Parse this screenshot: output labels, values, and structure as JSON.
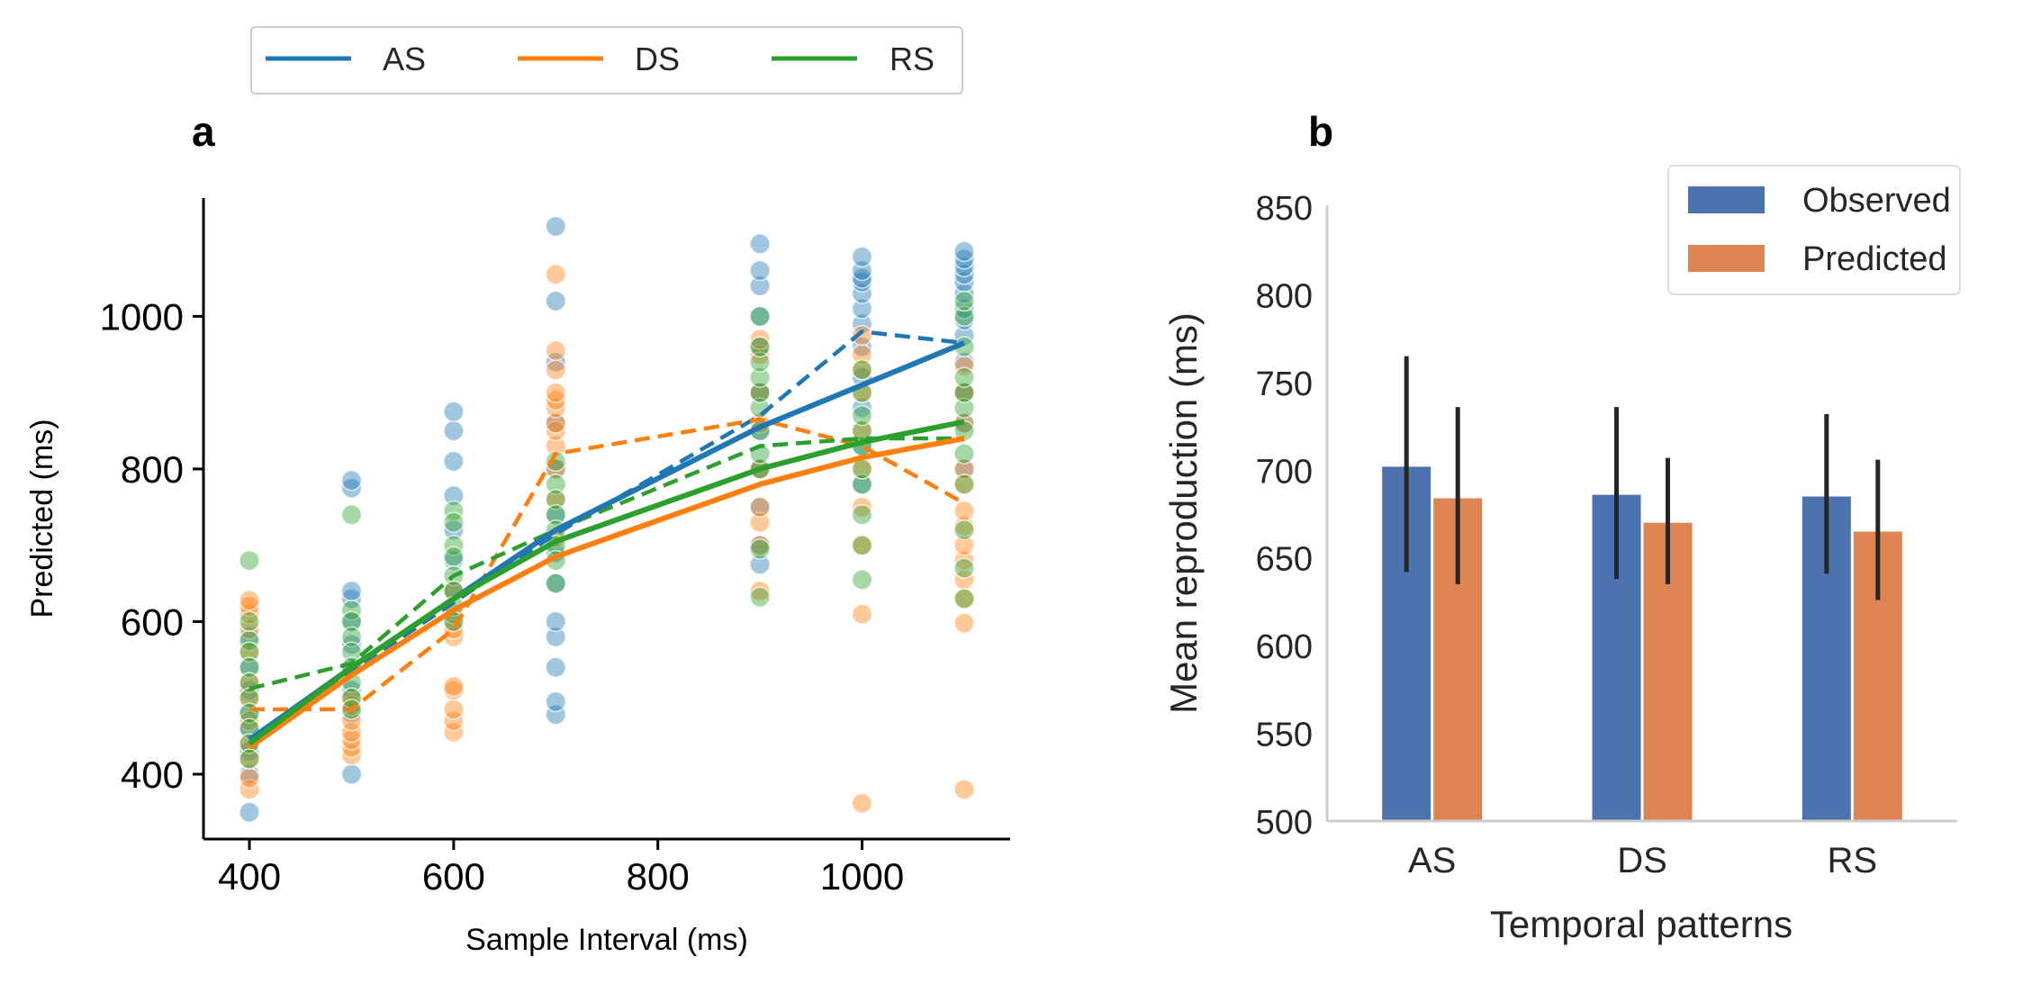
{
  "colors": {
    "AS": "#1f77b4",
    "DS": "#ff7f0e",
    "RS": "#2ca02c",
    "observed": "#4c72b0",
    "predicted": "#dd8452",
    "axis_a": "#000000",
    "axis_b": "#cccccc",
    "text_b": "#262626",
    "errorbar": "#262626"
  },
  "top_legend": {
    "entries": [
      "AS",
      "DS",
      "RS"
    ]
  },
  "chart_data": [
    {
      "panel": "a",
      "type": "scatter",
      "panel_label": "a",
      "xlabel": "Sample Interval (ms)",
      "ylabel": "Predicted (ms)",
      "xlim": [
        355,
        1145
      ],
      "ylim": [
        315,
        1155
      ],
      "xticks": [
        400,
        600,
        800,
        1000
      ],
      "yticks": [
        400,
        600,
        800,
        1000
      ],
      "grid": false,
      "scatter": [
        {
          "name": "AS",
          "points": [
            [
              400,
              350
            ],
            [
              400,
              400
            ],
            [
              400,
              430
            ],
            [
              400,
              460
            ],
            [
              400,
              480
            ],
            [
              400,
              510
            ],
            [
              400,
              540
            ],
            [
              400,
              580
            ],
            [
              500,
              400
            ],
            [
              500,
              480
            ],
            [
              500,
              510
            ],
            [
              500,
              540
            ],
            [
              500,
              570
            ],
            [
              500,
              600
            ],
            [
              500,
              630
            ],
            [
              500,
              640
            ],
            [
              500,
              775
            ],
            [
              500,
              785
            ],
            [
              600,
              600
            ],
            [
              600,
              640
            ],
            [
              600,
              680
            ],
            [
              600,
              720
            ],
            [
              600,
              765
            ],
            [
              600,
              810
            ],
            [
              600,
              850
            ],
            [
              600,
              875
            ],
            [
              700,
              478
            ],
            [
              700,
              495
            ],
            [
              700,
              540
            ],
            [
              700,
              580
            ],
            [
              700,
              600
            ],
            [
              700,
              650
            ],
            [
              700,
              690
            ],
            [
              700,
              740
            ],
            [
              700,
              800
            ],
            [
              700,
              860
            ],
            [
              700,
              940
            ],
            [
              700,
              1020
            ],
            [
              700,
              1118
            ],
            [
              900,
              675
            ],
            [
              900,
              700
            ],
            [
              900,
              750
            ],
            [
              900,
              800
            ],
            [
              900,
              850
            ],
            [
              900,
              900
            ],
            [
              900,
              960
            ],
            [
              900,
              1000
            ],
            [
              900,
              1040
            ],
            [
              900,
              1060
            ],
            [
              900,
              1095
            ],
            [
              1000,
              780
            ],
            [
              1000,
              830
            ],
            [
              1000,
              880
            ],
            [
              1000,
              920
            ],
            [
              1000,
              960
            ],
            [
              1000,
              990
            ],
            [
              1000,
              1010
            ],
            [
              1000,
              1030
            ],
            [
              1000,
              1045
            ],
            [
              1000,
              1050
            ],
            [
              1000,
              1060
            ],
            [
              1000,
              1078
            ],
            [
              1100,
              800
            ],
            [
              1100,
              860
            ],
            [
              1100,
              900
            ],
            [
              1100,
              940
            ],
            [
              1100,
              975
            ],
            [
              1100,
              995
            ],
            [
              1100,
              1010
            ],
            [
              1100,
              1030
            ],
            [
              1100,
              1045
            ],
            [
              1100,
              1055
            ],
            [
              1100,
              1065
            ],
            [
              1100,
              1075
            ],
            [
              1100,
              1085
            ]
          ]
        },
        {
          "name": "DS",
          "points": [
            [
              400,
              380
            ],
            [
              400,
              395
            ],
            [
              400,
              420
            ],
            [
              400,
              440
            ],
            [
              400,
              470
            ],
            [
              400,
              500
            ],
            [
              400,
              520
            ],
            [
              400,
              560
            ],
            [
              400,
              590
            ],
            [
              400,
              610
            ],
            [
              400,
              620
            ],
            [
              400,
              628
            ],
            [
              500,
              425
            ],
            [
              500,
              435
            ],
            [
              500,
              445
            ],
            [
              500,
              455
            ],
            [
              500,
              470
            ],
            [
              500,
              490
            ],
            [
              500,
              500
            ],
            [
              600,
              455
            ],
            [
              600,
              470
            ],
            [
              600,
              485
            ],
            [
              600,
              510
            ],
            [
              600,
              515
            ],
            [
              600,
              580
            ],
            [
              600,
              590
            ],
            [
              600,
              610
            ],
            [
              600,
              640
            ],
            [
              700,
              710
            ],
            [
              700,
              760
            ],
            [
              700,
              800
            ],
            [
              700,
              830
            ],
            [
              700,
              850
            ],
            [
              700,
              860
            ],
            [
              700,
              880
            ],
            [
              700,
              890
            ],
            [
              700,
              900
            ],
            [
              700,
              930
            ],
            [
              700,
              955
            ],
            [
              700,
              1055
            ],
            [
              900,
              640
            ],
            [
              900,
              700
            ],
            [
              900,
              730
            ],
            [
              900,
              750
            ],
            [
              900,
              800
            ],
            [
              900,
              860
            ],
            [
              900,
              900
            ],
            [
              900,
              950
            ],
            [
              900,
              970
            ],
            [
              1000,
              362
            ],
            [
              1000,
              610
            ],
            [
              1000,
              700
            ],
            [
              1000,
              750
            ],
            [
              1000,
              800
            ],
            [
              1000,
              850
            ],
            [
              1000,
              900
            ],
            [
              1000,
              930
            ],
            [
              1000,
              950
            ],
            [
              1000,
              975
            ],
            [
              1100,
              380
            ],
            [
              1100,
              598
            ],
            [
              1100,
              630
            ],
            [
              1100,
              655
            ],
            [
              1100,
              680
            ],
            [
              1100,
              700
            ],
            [
              1100,
              725
            ],
            [
              1100,
              745
            ],
            [
              1100,
              780
            ],
            [
              1100,
              800
            ],
            [
              1100,
              860
            ],
            [
              1100,
              900
            ],
            [
              1100,
              935
            ]
          ]
        },
        {
          "name": "RS",
          "points": [
            [
              400,
              680
            ],
            [
              400,
              600
            ],
            [
              400,
              575
            ],
            [
              400,
              560
            ],
            [
              400,
              540
            ],
            [
              400,
              520
            ],
            [
              400,
              500
            ],
            [
              400,
              480
            ],
            [
              400,
              460
            ],
            [
              400,
              440
            ],
            [
              400,
              420
            ],
            [
              500,
              740
            ],
            [
              500,
              615
            ],
            [
              500,
              600
            ],
            [
              500,
              580
            ],
            [
              500,
              560
            ],
            [
              500,
              540
            ],
            [
              500,
              520
            ],
            [
              500,
              500
            ],
            [
              500,
              485
            ],
            [
              600,
              745
            ],
            [
              600,
              730
            ],
            [
              600,
              700
            ],
            [
              600,
              685
            ],
            [
              600,
              660
            ],
            [
              600,
              640
            ],
            [
              600,
              620
            ],
            [
              600,
              600
            ],
            [
              700,
              810
            ],
            [
              700,
              780
            ],
            [
              700,
              760
            ],
            [
              700,
              740
            ],
            [
              700,
              720
            ],
            [
              700,
              700
            ],
            [
              700,
              680
            ],
            [
              700,
              650
            ],
            [
              900,
              632
            ],
            [
              900,
              695
            ],
            [
              900,
              800
            ],
            [
              900,
              820
            ],
            [
              900,
              850
            ],
            [
              900,
              880
            ],
            [
              900,
              900
            ],
            [
              900,
              920
            ],
            [
              900,
              940
            ],
            [
              900,
              960
            ],
            [
              900,
              1000
            ],
            [
              1000,
              655
            ],
            [
              1000,
              700
            ],
            [
              1000,
              740
            ],
            [
              1000,
              780
            ],
            [
              1000,
              800
            ],
            [
              1000,
              830
            ],
            [
              1000,
              850
            ],
            [
              1000,
              870
            ],
            [
              1000,
              900
            ],
            [
              1000,
              930
            ],
            [
              1100,
              630
            ],
            [
              1100,
              670
            ],
            [
              1100,
              720
            ],
            [
              1100,
              780
            ],
            [
              1100,
              820
            ],
            [
              1100,
              850
            ],
            [
              1100,
              880
            ],
            [
              1100,
              900
            ],
            [
              1100,
              920
            ],
            [
              1100,
              960
            ],
            [
              1100,
              1000
            ],
            [
              1100,
              1020
            ]
          ]
        }
      ],
      "solid_lines": [
        {
          "name": "AS",
          "points": [
            [
              400,
              445
            ],
            [
              500,
              540
            ],
            [
              600,
              630
            ],
            [
              700,
              720
            ],
            [
              900,
              855
            ],
            [
              1000,
              910
            ],
            [
              1100,
              965
            ]
          ]
        },
        {
          "name": "DS",
          "points": [
            [
              400,
              435
            ],
            [
              500,
              530
            ],
            [
              600,
              615
            ],
            [
              700,
              685
            ],
            [
              900,
              780
            ],
            [
              1000,
              815
            ],
            [
              1100,
              840
            ]
          ]
        },
        {
          "name": "RS",
          "points": [
            [
              400,
              440
            ],
            [
              500,
              540
            ],
            [
              600,
              630
            ],
            [
              700,
              705
            ],
            [
              900,
              800
            ],
            [
              1000,
              835
            ],
            [
              1100,
              862
            ]
          ]
        }
      ],
      "dashed_lines": [
        {
          "name": "AS",
          "points": [
            [
              400,
              440
            ],
            [
              500,
              535
            ],
            [
              600,
              625
            ],
            [
              700,
              715
            ],
            [
              900,
              870
            ],
            [
              1000,
              980
            ],
            [
              1100,
              965
            ]
          ]
        },
        {
          "name": "DS",
          "points": [
            [
              400,
              485
            ],
            [
              500,
              485
            ],
            [
              600,
              590
            ],
            [
              700,
              820
            ],
            [
              900,
              865
            ],
            [
              1000,
              830
            ],
            [
              1100,
              755
            ]
          ]
        },
        {
          "name": "RS",
          "points": [
            [
              400,
              512
            ],
            [
              500,
              545
            ],
            [
              600,
              660
            ],
            [
              700,
              720
            ],
            [
              900,
              830
            ],
            [
              1000,
              840
            ],
            [
              1100,
              840
            ]
          ]
        }
      ]
    },
    {
      "panel": "b",
      "type": "bar",
      "panel_label": "b",
      "xlabel": "Temporal patterns",
      "ylabel": "Mean reproduction (ms)",
      "categories": [
        "AS",
        "DS",
        "RS"
      ],
      "ylim": [
        500,
        850
      ],
      "yticks": [
        500,
        550,
        600,
        650,
        700,
        750,
        800,
        850
      ],
      "legend_position": "top-right",
      "grid": false,
      "series": [
        {
          "name": "Observed",
          "values": [
            702,
            686,
            685
          ],
          "err_low": [
            642,
            638,
            641
          ],
          "err_high": [
            765,
            736,
            732
          ]
        },
        {
          "name": "Predicted",
          "values": [
            684,
            670,
            665
          ],
          "err_low": [
            635,
            635,
            626
          ],
          "err_high": [
            736,
            707,
            706
          ]
        }
      ]
    }
  ]
}
